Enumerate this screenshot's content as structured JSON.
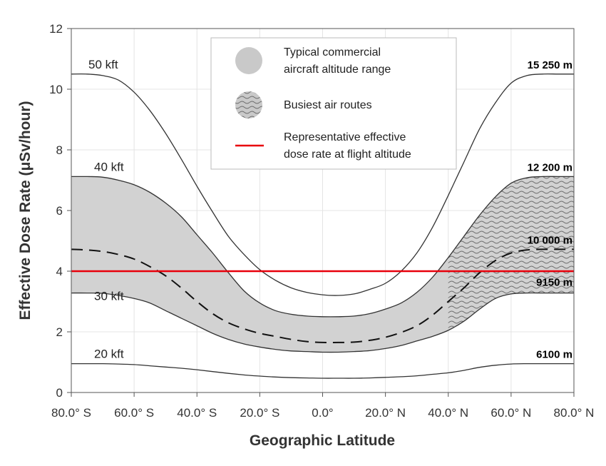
{
  "chart_data": {
    "type": "line",
    "xlabel": "Geographic Latitude",
    "ylabel": "Effective Dose Rate (μSv/hour)",
    "xlim": [
      -80,
      80
    ],
    "ylim": [
      0,
      12
    ],
    "x_ticks": [
      {
        "value": -80,
        "label": "80.0° S"
      },
      {
        "value": -60,
        "label": "60.0° S"
      },
      {
        "value": -40,
        "label": "40.0° S"
      },
      {
        "value": -20,
        "label": "20.0° S"
      },
      {
        "value": 0,
        "label": "0.0°"
      },
      {
        "value": 20,
        "label": "20.0° N"
      },
      {
        "value": 40,
        "label": "40.0° N"
      },
      {
        "value": 60,
        "label": "60.0° N"
      },
      {
        "value": 80,
        "label": "80.0° N"
      }
    ],
    "y_ticks": [
      {
        "value": 0,
        "label": "0"
      },
      {
        "value": 2,
        "label": "2"
      },
      {
        "value": 4,
        "label": "4"
      },
      {
        "value": 6,
        "label": "6"
      },
      {
        "value": 8,
        "label": "8"
      },
      {
        "value": 10,
        "label": "10"
      },
      {
        "value": 12,
        "label": "12"
      }
    ],
    "grid": true,
    "x": [
      -80,
      -75,
      -70,
      -65,
      -60,
      -55,
      -50,
      -45,
      -40,
      -35,
      -30,
      -25,
      -20,
      -15,
      -10,
      -5,
      0,
      5,
      10,
      15,
      20,
      25,
      30,
      35,
      40,
      45,
      50,
      55,
      60,
      65,
      70,
      75,
      80
    ],
    "curves": [
      {
        "altitude_ft": "50 kft",
        "altitude_m": "15 250 m",
        "values": [
          10.5,
          10.5,
          10.45,
          10.3,
          9.9,
          9.3,
          8.55,
          7.7,
          6.8,
          5.95,
          5.15,
          4.55,
          4.05,
          3.7,
          3.45,
          3.3,
          3.22,
          3.2,
          3.25,
          3.4,
          3.6,
          4.0,
          4.6,
          5.45,
          6.5,
          7.6,
          8.7,
          9.55,
          10.2,
          10.45,
          10.5,
          10.5,
          10.5
        ]
      },
      {
        "altitude_ft": "40 kft",
        "altitude_m": "12 200 m",
        "values": [
          7.12,
          7.12,
          7.1,
          7.0,
          6.85,
          6.6,
          6.25,
          5.8,
          5.2,
          4.6,
          3.95,
          3.35,
          2.95,
          2.7,
          2.58,
          2.52,
          2.5,
          2.5,
          2.52,
          2.6,
          2.75,
          2.95,
          3.3,
          3.8,
          4.45,
          5.15,
          5.85,
          6.45,
          6.9,
          7.08,
          7.12,
          7.12,
          7.12
        ]
      },
      {
        "altitude_ft": "30 kft",
        "altitude_m": "9150 m",
        "values": [
          3.28,
          3.28,
          3.27,
          3.2,
          3.1,
          2.95,
          2.7,
          2.45,
          2.2,
          1.95,
          1.75,
          1.6,
          1.5,
          1.42,
          1.37,
          1.35,
          1.33,
          1.33,
          1.35,
          1.38,
          1.45,
          1.55,
          1.7,
          1.85,
          2.05,
          2.35,
          2.75,
          3.1,
          3.25,
          3.28,
          3.28,
          3.28,
          3.28
        ]
      },
      {
        "altitude_ft": "20 kft",
        "altitude_m": "6100 m",
        "values": [
          0.95,
          0.95,
          0.95,
          0.94,
          0.92,
          0.88,
          0.84,
          0.8,
          0.75,
          0.69,
          0.63,
          0.58,
          0.54,
          0.51,
          0.49,
          0.48,
          0.47,
          0.47,
          0.47,
          0.48,
          0.5,
          0.52,
          0.55,
          0.6,
          0.65,
          0.73,
          0.83,
          0.9,
          0.94,
          0.95,
          0.95,
          0.95,
          0.95
        ]
      }
    ],
    "dashed_curve": {
      "altitude_m": "10 000 m",
      "values": [
        4.72,
        4.7,
        4.65,
        4.55,
        4.4,
        4.15,
        3.85,
        3.45,
        3.0,
        2.6,
        2.3,
        2.1,
        1.95,
        1.85,
        1.75,
        1.68,
        1.65,
        1.65,
        1.66,
        1.72,
        1.82,
        1.98,
        2.2,
        2.55,
        3.0,
        3.45,
        3.95,
        4.35,
        4.6,
        4.7,
        4.72,
        4.72,
        4.72
      ]
    },
    "reference_line": {
      "y": 4.0,
      "color": "#e8000b"
    },
    "busiest_routes": {
      "x_from": 40,
      "x_to": 80
    },
    "legend": {
      "placement": "top-center",
      "items": [
        {
          "label_lines": [
            "Typical commercial",
            "aircraft altitude range"
          ],
          "symbol": "solid-grey-circle"
        },
        {
          "label_lines": [
            "Busiest air routes"
          ],
          "symbol": "wavy-hatched-circle"
        },
        {
          "label_lines": [
            "Representative effective",
            "dose rate at flight altitude"
          ],
          "symbol": "red-line"
        }
      ]
    },
    "colors": {
      "band_fill": "#d2d2d2",
      "curve_stroke": "#333333",
      "hatch_stroke": "#6a6a6a",
      "reference": "#e8000b"
    }
  }
}
